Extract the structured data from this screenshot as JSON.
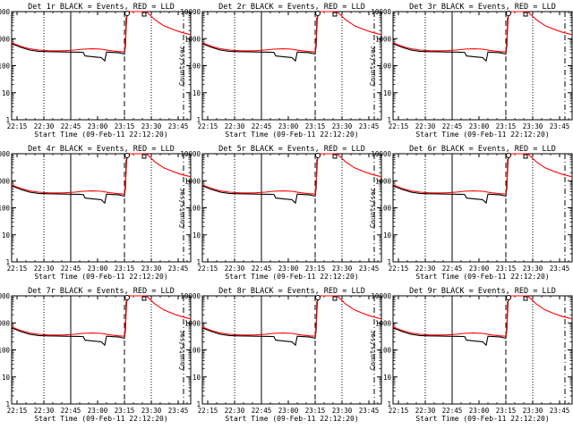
{
  "chart_data": {
    "type": "line",
    "panels": [
      {
        "title": "Det 1r BLACK = Events, RED = LLD"
      },
      {
        "title": "Det 2r BLACK = Events, RED = LLD"
      },
      {
        "title": "Det 3r BLACK = Events, RED = LLD"
      },
      {
        "title": "Det 4r BLACK = Events, RED = LLD"
      },
      {
        "title": "Det 5r BLACK = Events, RED = LLD"
      },
      {
        "title": "Det 6r BLACK = Events, RED = LLD"
      },
      {
        "title": "Det 7r BLACK = Events, RED = LLD"
      },
      {
        "title": "Det 8r BLACK = Events, RED = LLD"
      },
      {
        "title": "Det 9r BLACK = Events, RED = LLD"
      }
    ],
    "xlabel": "Start Time (09-Feb-11 22:12:20)",
    "ylabel": "Counts/sec",
    "x_ticks": [
      "22:15",
      "22:30",
      "22:45",
      "23:00",
      "23:15",
      "23:30",
      "23:45"
    ],
    "x_tick_minutes": [
      3,
      18,
      33,
      48,
      63,
      78,
      93
    ],
    "xlim_minutes": [
      0,
      100
    ],
    "y_ticks": [
      "1",
      "10",
      "100",
      "1000",
      "10000"
    ],
    "ylim": [
      1,
      10000
    ],
    "yscale": "log",
    "vlines": [
      {
        "minute": 18,
        "style": "dotted"
      },
      {
        "minute": 33,
        "style": "solid"
      },
      {
        "minute": 63,
        "style": "dashed"
      },
      {
        "minute": 78,
        "style": "dotted"
      },
      {
        "minute": 96,
        "style": "dash-dot"
      }
    ],
    "series": [
      {
        "name": "Events",
        "color": "#000000",
        "x": [
          0,
          5,
          10,
          15,
          20,
          25,
          30,
          33,
          38,
          40,
          41,
          45,
          50,
          52,
          53,
          60,
          62,
          63,
          63.6,
          64,
          66,
          68
        ],
        "y": [
          650,
          480,
          380,
          340,
          330,
          325,
          320,
          318,
          315,
          310,
          230,
          215,
          200,
          150,
          320,
          300,
          280,
          270,
          600,
          6000,
          12000,
          12000
        ]
      },
      {
        "name": "LLD",
        "color": "#ff0000",
        "x": [
          0,
          5,
          10,
          15,
          20,
          25,
          30,
          35,
          40,
          45,
          50,
          55,
          60,
          63,
          63.8,
          64.5,
          66,
          68,
          75,
          76,
          80,
          85,
          90,
          95,
          100
        ],
        "y": [
          700,
          520,
          420,
          380,
          360,
          355,
          360,
          380,
          410,
          420,
          410,
          360,
          330,
          320,
          1500,
          9000,
          12000,
          12000,
          12000,
          9000,
          5000,
          3000,
          2200,
          1700,
          1400
        ]
      }
    ]
  }
}
